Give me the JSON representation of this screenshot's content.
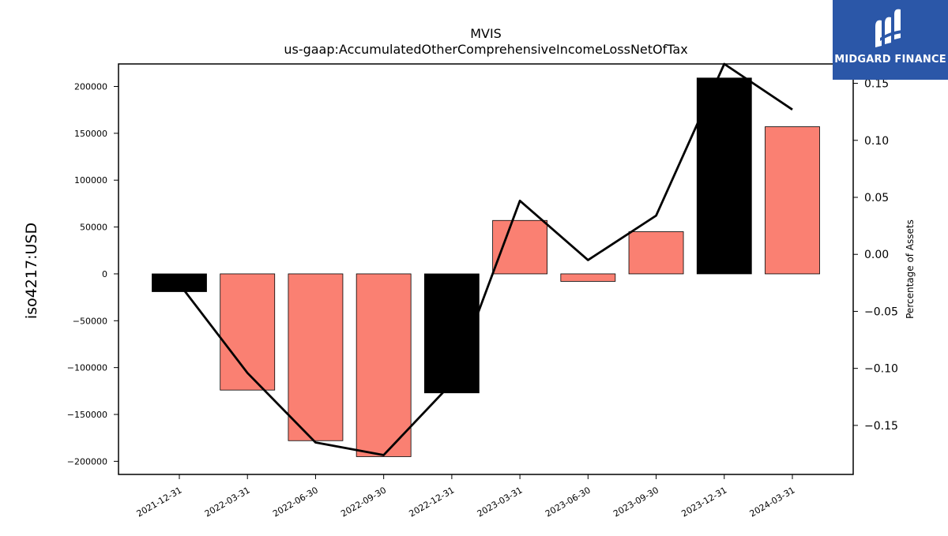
{
  "brand": {
    "name": "MIDGARD FINANCE",
    "logo_icon": "midgard-mi-monogram-icon",
    "background_color": "#2b57a8"
  },
  "chart_data": {
    "type": "bar",
    "title": "MVIS",
    "subtitle": "us-gaap:AccumulatedOtherComprehensiveIncomeLossNetOfTax",
    "ylabel": "iso4217:USD",
    "y2label": "Percentage of Assets",
    "categories": [
      "2021-12-31",
      "2022-03-31",
      "2022-06-30",
      "2022-09-30",
      "2022-12-31",
      "2023-03-31",
      "2023-06-30",
      "2023-09-30",
      "2023-12-31",
      "2024-03-31"
    ],
    "series": [
      {
        "kind": "bar",
        "axis": "left",
        "values": [
          -19000,
          -124000,
          -178000,
          -195000,
          -127000,
          57000,
          -8000,
          45000,
          209000,
          157000
        ],
        "colors": [
          "#000000",
          "#fa8072",
          "#fa8072",
          "#fa8072",
          "#000000",
          "#fa8072",
          "#fa8072",
          "#fa8072",
          "#000000",
          "#fa8072"
        ]
      },
      {
        "kind": "line",
        "axis": "right",
        "values": [
          -0.026,
          -0.104,
          -0.165,
          -0.176,
          -0.113,
          0.047,
          -0.005,
          0.034,
          0.167,
          0.127
        ],
        "color": "#000000"
      }
    ],
    "ylim": [
      -214000,
      224000
    ],
    "y2lim": [
      -0.193,
      0.167
    ],
    "yticks": [
      -200000,
      -150000,
      -100000,
      -50000,
      0,
      50000,
      100000,
      150000,
      200000
    ],
    "ytick_labels": [
      "−200000",
      "−150000",
      "−100000",
      "−50000",
      "0",
      "50000",
      "100000",
      "150000",
      "200000"
    ],
    "y2ticks": [
      -0.15,
      -0.1,
      -0.05,
      0.0,
      0.05,
      0.1,
      0.15
    ],
    "y2tick_labels": [
      "−0.15",
      "−0.10",
      "−0.05",
      "0.00",
      "0.05",
      "0.10",
      "0.15"
    ],
    "grid": false,
    "legend": "none"
  }
}
